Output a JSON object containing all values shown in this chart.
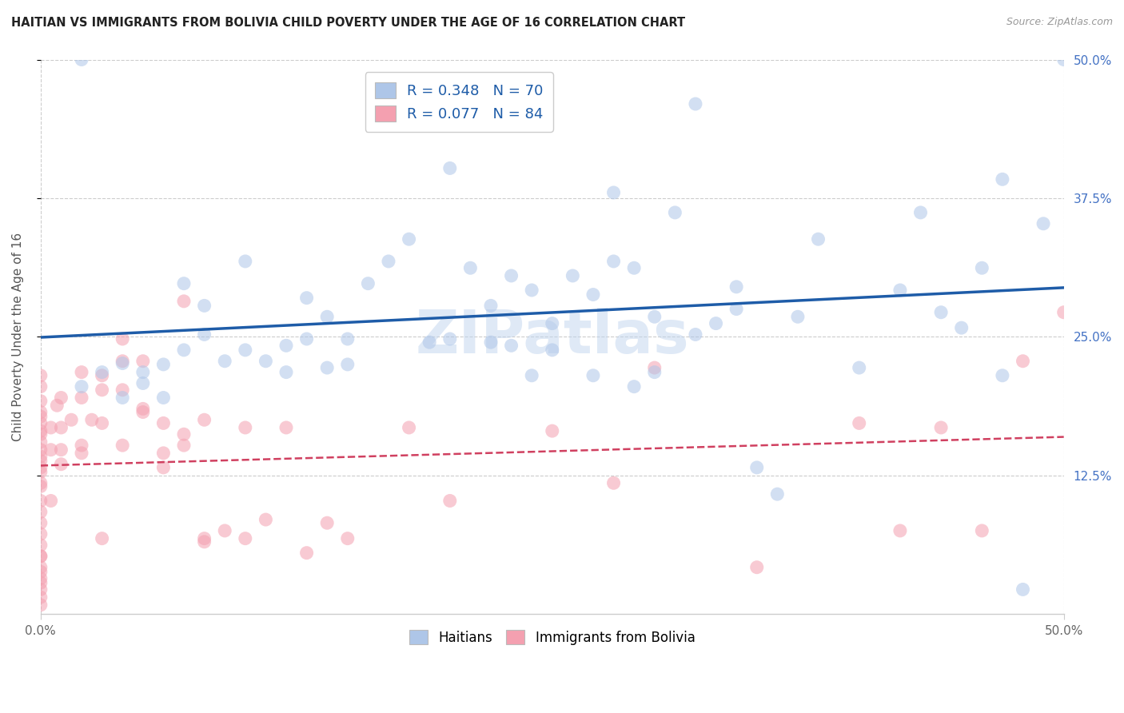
{
  "title": "HAITIAN VS IMMIGRANTS FROM BOLIVIA CHILD POVERTY UNDER THE AGE OF 16 CORRELATION CHART",
  "source": "Source: ZipAtlas.com",
  "ylabel": "Child Poverty Under the Age of 16",
  "xlim": [
    0.0,
    0.5
  ],
  "ylim": [
    0.0,
    0.5
  ],
  "xtick_values": [
    0.0,
    0.5
  ],
  "xtick_labels": [
    "0.0%",
    "50.0%"
  ],
  "ytick_values": [
    0.125,
    0.25,
    0.375,
    0.5
  ],
  "ytick_labels": [
    "12.5%",
    "25.0%",
    "37.5%",
    "50.0%"
  ],
  "haitians_color": "#aec6e8",
  "bolivia_color": "#f4a0b0",
  "haitians_line_color": "#1e5ca8",
  "bolivia_line_color": "#d04060",
  "watermark": "ZIPatlas",
  "legend_color": "#1e5ca8",
  "grid_color": "#cccccc",
  "bottom_legend_labels": [
    "Haitians",
    "Immigrants from Bolivia"
  ],
  "haitian_x": [
    0.02,
    0.02,
    0.03,
    0.04,
    0.04,
    0.05,
    0.05,
    0.06,
    0.06,
    0.07,
    0.07,
    0.08,
    0.08,
    0.09,
    0.1,
    0.1,
    0.11,
    0.12,
    0.12,
    0.13,
    0.13,
    0.14,
    0.14,
    0.15,
    0.15,
    0.16,
    0.17,
    0.18,
    0.19,
    0.2,
    0.2,
    0.21,
    0.22,
    0.22,
    0.23,
    0.23,
    0.24,
    0.24,
    0.25,
    0.25,
    0.26,
    0.27,
    0.27,
    0.28,
    0.29,
    0.29,
    0.3,
    0.31,
    0.32,
    0.33,
    0.34,
    0.35,
    0.36,
    0.37,
    0.38,
    0.4,
    0.42,
    0.43,
    0.44,
    0.45,
    0.46,
    0.47,
    0.47,
    0.48,
    0.49,
    0.5,
    0.28,
    0.3,
    0.32,
    0.34
  ],
  "haitian_y": [
    0.205,
    0.5,
    0.218,
    0.226,
    0.195,
    0.218,
    0.208,
    0.225,
    0.195,
    0.298,
    0.238,
    0.252,
    0.278,
    0.228,
    0.318,
    0.238,
    0.228,
    0.242,
    0.218,
    0.285,
    0.248,
    0.268,
    0.222,
    0.248,
    0.225,
    0.298,
    0.318,
    0.338,
    0.245,
    0.402,
    0.248,
    0.312,
    0.278,
    0.245,
    0.305,
    0.242,
    0.292,
    0.215,
    0.262,
    0.238,
    0.305,
    0.288,
    0.215,
    0.318,
    0.205,
    0.312,
    0.218,
    0.362,
    0.46,
    0.262,
    0.275,
    0.132,
    0.108,
    0.268,
    0.338,
    0.222,
    0.292,
    0.362,
    0.272,
    0.258,
    0.312,
    0.392,
    0.215,
    0.022,
    0.352,
    0.5,
    0.38,
    0.268,
    0.252,
    0.295
  ],
  "bolivia_x": [
    0.0,
    0.0,
    0.0,
    0.0,
    0.0,
    0.0,
    0.0,
    0.0,
    0.0,
    0.0,
    0.0,
    0.0,
    0.0,
    0.0,
    0.0,
    0.0,
    0.0,
    0.0,
    0.0,
    0.0,
    0.0,
    0.0,
    0.0,
    0.0,
    0.0,
    0.0,
    0.0,
    0.0,
    0.0,
    0.0,
    0.005,
    0.005,
    0.005,
    0.008,
    0.01,
    0.01,
    0.01,
    0.01,
    0.015,
    0.02,
    0.02,
    0.02,
    0.02,
    0.025,
    0.03,
    0.03,
    0.03,
    0.04,
    0.04,
    0.04,
    0.05,
    0.05,
    0.06,
    0.06,
    0.07,
    0.07,
    0.08,
    0.08,
    0.09,
    0.1,
    0.1,
    0.11,
    0.12,
    0.13,
    0.14,
    0.15,
    0.18,
    0.2,
    0.25,
    0.28,
    0.3,
    0.35,
    0.4,
    0.42,
    0.44,
    0.46,
    0.48,
    0.5,
    0.03,
    0.04,
    0.05,
    0.06,
    0.07,
    0.08
  ],
  "bolivia_y": [
    0.155,
    0.142,
    0.128,
    0.115,
    0.102,
    0.092,
    0.082,
    0.072,
    0.062,
    0.052,
    0.042,
    0.032,
    0.022,
    0.015,
    0.165,
    0.138,
    0.172,
    0.182,
    0.192,
    0.205,
    0.215,
    0.178,
    0.162,
    0.148,
    0.008,
    0.132,
    0.118,
    0.052,
    0.038,
    0.028,
    0.102,
    0.148,
    0.168,
    0.188,
    0.168,
    0.148,
    0.195,
    0.135,
    0.175,
    0.152,
    0.195,
    0.145,
    0.218,
    0.175,
    0.172,
    0.215,
    0.068,
    0.202,
    0.248,
    0.152,
    0.182,
    0.228,
    0.132,
    0.172,
    0.162,
    0.152,
    0.068,
    0.175,
    0.075,
    0.068,
    0.168,
    0.085,
    0.168,
    0.055,
    0.082,
    0.068,
    0.168,
    0.102,
    0.165,
    0.118,
    0.222,
    0.042,
    0.172,
    0.075,
    0.168,
    0.075,
    0.228,
    0.272,
    0.202,
    0.228,
    0.185,
    0.145,
    0.282,
    0.065
  ]
}
